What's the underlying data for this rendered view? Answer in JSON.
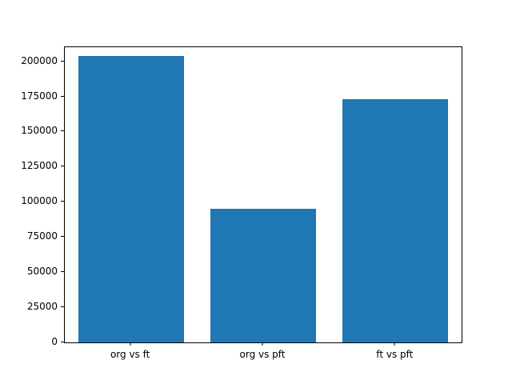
{
  "chart_data": {
    "type": "bar",
    "categories": [
      "org vs ft",
      "org vs pft",
      "ft vs pft"
    ],
    "values": [
      204000,
      95000,
      173000
    ],
    "title": "",
    "xlabel": "",
    "ylabel": "",
    "ylim": [
      0,
      210000
    ],
    "yticks": [
      0,
      25000,
      50000,
      75000,
      100000,
      125000,
      150000,
      175000,
      200000
    ],
    "bar_color": "#1f77b4",
    "bar_width_fraction": 0.8,
    "grid": false,
    "legend": "none"
  }
}
